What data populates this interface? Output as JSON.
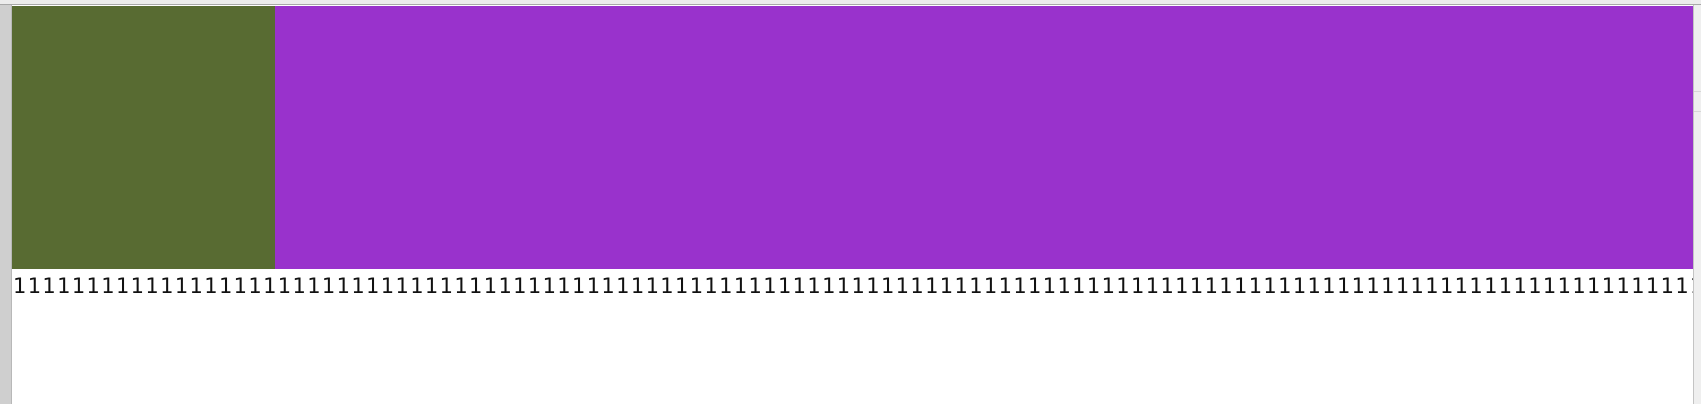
{
  "colors": {
    "green_block": "#586b32",
    "purple_block": "#9932cc",
    "background": "#ffffff",
    "text": "#111111"
  },
  "content": {
    "digit_line": "111111111111111111111111111111111111111111111111111111111111111111111111111111111111111111111111111111111111111111111111111111111111"
  }
}
